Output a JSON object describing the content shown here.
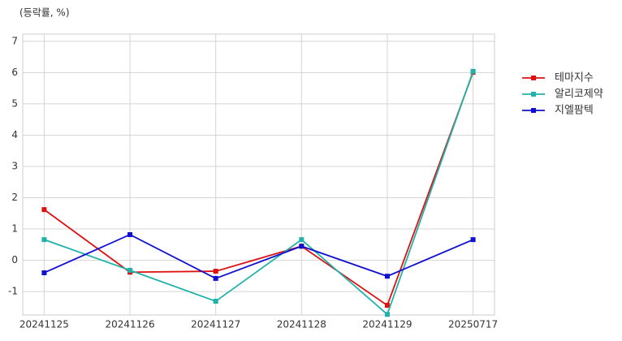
{
  "chart_data": {
    "type": "line",
    "y_label": "(등락률, %)",
    "categories": [
      "20241125",
      "20241126",
      "20241127",
      "20241128",
      "20241129",
      "20250717"
    ],
    "series": [
      {
        "name": "테마지수",
        "color": "#dd1111",
        "values": [
          1.62,
          -0.38,
          -0.35,
          0.45,
          -1.44,
          6.01
        ]
      },
      {
        "name": "알리코제약",
        "color": "#20b2aa",
        "values": [
          0.66,
          -0.32,
          -1.31,
          0.66,
          -1.73,
          6.04
        ]
      },
      {
        "name": "지엘팜텍",
        "color": "#1010d0",
        "values": [
          -0.4,
          0.82,
          -0.58,
          0.45,
          -0.51,
          0.66
        ]
      }
    ],
    "ylim": [
      -1.75,
      7.23
    ],
    "yticks": [
      -1,
      0,
      1,
      2,
      3,
      4,
      5,
      6,
      7
    ],
    "grid": true
  }
}
